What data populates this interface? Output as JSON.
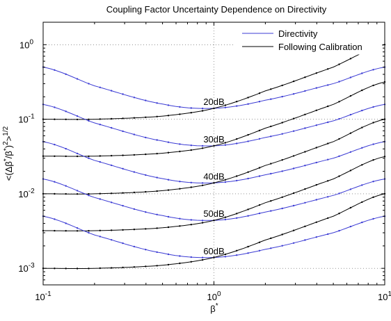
{
  "chart_data": {
    "type": "line",
    "title": "Coupling Factor Uncertainty Dependence on Directivity",
    "xlabel": "β*",
    "ylabel": "<(Δβ*/β*)²>^1/2",
    "xscale": "log",
    "yscale": "log",
    "xlim": [
      0.1,
      10
    ],
    "ylim": [
      0.0006,
      2
    ],
    "x_ticks": [
      0.1,
      1,
      10
    ],
    "x_tick_labels": [
      {
        "base": "10",
        "exp": "-1"
      },
      {
        "base": "10",
        "exp": "0"
      },
      {
        "base": "10",
        "exp": "1"
      }
    ],
    "y_ticks": [
      0.001,
      0.01,
      0.1,
      1
    ],
    "y_tick_labels": [
      {
        "base": "10",
        "exp": "-3"
      },
      {
        "base": "10",
        "exp": "-2"
      },
      {
        "base": "10",
        "exp": "-1"
      },
      {
        "base": "10",
        "exp": "0"
      }
    ],
    "grid": true,
    "legend_position": "top-right",
    "legend": [
      {
        "label": "Directivity",
        "color": "#3b3bd4"
      },
      {
        "label": "Following Calibration",
        "color": "#000000"
      }
    ],
    "colors": {
      "directivity": "#3b3bd4",
      "calibration": "#000000"
    },
    "x": [
      0.1,
      0.2,
      0.5,
      1,
      2,
      5,
      10
    ],
    "series": [
      {
        "group": "20dB",
        "legend_ref": "Directivity",
        "values": [
          0.5,
          0.28,
          0.16,
          0.14,
          0.18,
          0.3,
          0.5
        ]
      },
      {
        "group": "20dB",
        "legend_ref": "Following Calibration",
        "values": [
          0.1,
          0.1,
          0.11,
          0.14,
          0.24,
          0.5,
          1.0
        ]
      },
      {
        "group": "30dB",
        "legend_ref": "Directivity",
        "values": [
          0.158,
          0.089,
          0.051,
          0.044,
          0.057,
          0.095,
          0.158
        ]
      },
      {
        "group": "30dB",
        "legend_ref": "Following Calibration",
        "values": [
          0.032,
          0.032,
          0.035,
          0.044,
          0.076,
          0.158,
          0.316
        ]
      },
      {
        "group": "40dB",
        "legend_ref": "Directivity",
        "values": [
          0.05,
          0.028,
          0.016,
          0.014,
          0.018,
          0.03,
          0.05
        ]
      },
      {
        "group": "40dB",
        "legend_ref": "Following Calibration",
        "values": [
          0.01,
          0.01,
          0.011,
          0.014,
          0.024,
          0.05,
          0.1
        ]
      },
      {
        "group": "50dB",
        "legend_ref": "Directivity",
        "values": [
          0.0158,
          0.0089,
          0.0051,
          0.0044,
          0.0057,
          0.0095,
          0.0158
        ]
      },
      {
        "group": "50dB",
        "legend_ref": "Following Calibration",
        "values": [
          0.0032,
          0.0032,
          0.0035,
          0.0044,
          0.0076,
          0.0158,
          0.0316
        ]
      },
      {
        "group": "60dB",
        "legend_ref": "Directivity",
        "values": [
          0.005,
          0.0028,
          0.0016,
          0.0014,
          0.0018,
          0.003,
          0.005
        ]
      },
      {
        "group": "60dB",
        "legend_ref": "Following Calibration",
        "values": [
          0.001,
          0.001,
          0.0011,
          0.0014,
          0.0024,
          0.005,
          0.01
        ]
      }
    ],
    "annotations": [
      {
        "text": "20dB",
        "x": 1.0,
        "y": 0.155
      },
      {
        "text": "30dB",
        "x": 1.0,
        "y": 0.049
      },
      {
        "text": "40dB",
        "x": 1.0,
        "y": 0.0155
      },
      {
        "text": "50dB",
        "x": 1.0,
        "y": 0.0049
      },
      {
        "text": "60dB",
        "x": 1.0,
        "y": 0.00155
      }
    ]
  }
}
